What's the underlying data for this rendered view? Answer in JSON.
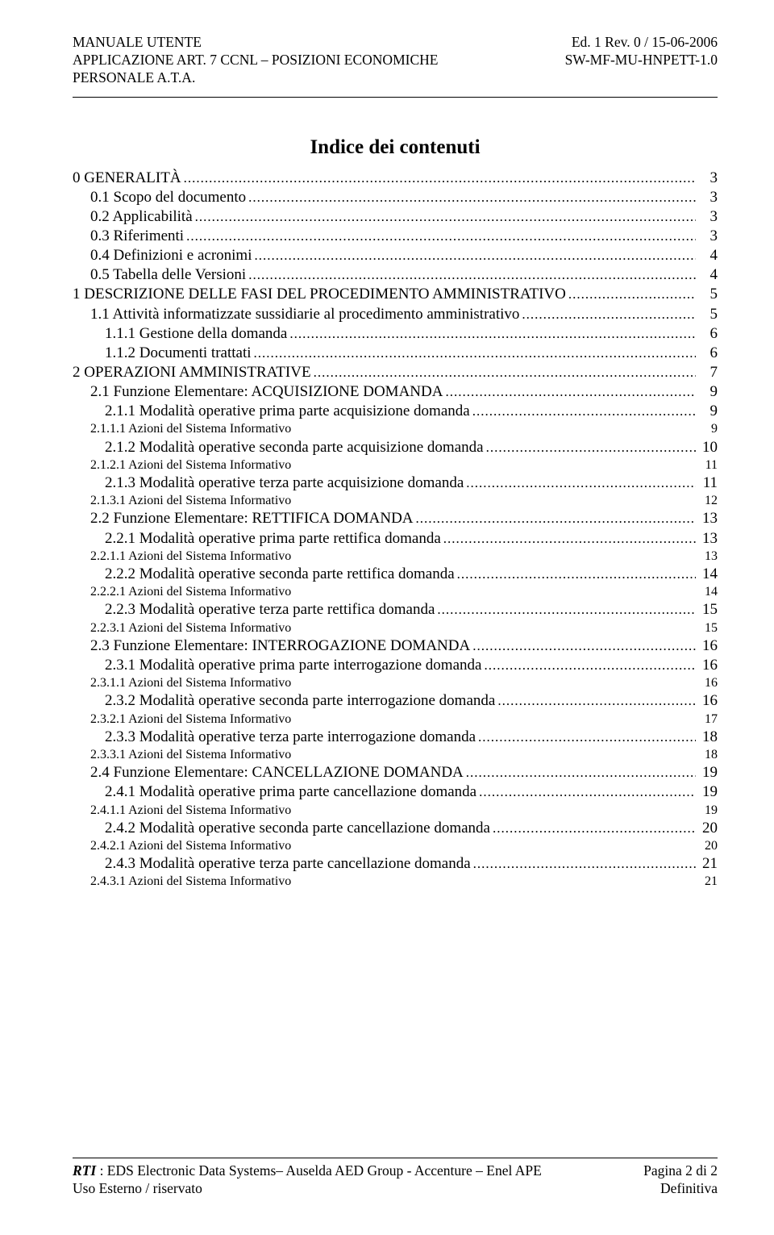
{
  "header": {
    "left": [
      "MANUALE UTENTE",
      "APPLICAZIONE ART. 7 CCNL – POSIZIONI ECONOMICHE",
      "PERSONALE A.T.A."
    ],
    "right": [
      "Ed. 1 Rev. 0 / 15-06-2006",
      "SW-MF-MU-HNPETT-1.0"
    ]
  },
  "toc_title": "Indice dei contenuti",
  "toc": [
    {
      "label": "0 GENERALITÀ",
      "page": "3",
      "level": 0
    },
    {
      "label": "0.1 Scopo del documento",
      "page": "3",
      "level": 1
    },
    {
      "label": "0.2 Applicabilità",
      "page": "3",
      "level": 1
    },
    {
      "label": "0.3 Riferimenti",
      "page": "3",
      "level": 1
    },
    {
      "label": "0.4 Definizioni e acronimi",
      "page": "4",
      "level": 1
    },
    {
      "label": "0.5 Tabella delle Versioni",
      "page": "4",
      "level": 1
    },
    {
      "label": "1 DESCRIZIONE DELLE FASI DEL PROCEDIMENTO AMMINISTRATIVO",
      "page": "5",
      "level": 0
    },
    {
      "label": "1.1 Attività informatizzate sussidiarie al procedimento amministrativo",
      "page": "5",
      "level": 1
    },
    {
      "label": "1.1.1 Gestione della domanda",
      "page": "6",
      "level": 2
    },
    {
      "label": "1.1.2 Documenti trattati",
      "page": "6",
      "level": 2
    },
    {
      "label": "2 OPERAZIONI AMMINISTRATIVE",
      "page": "7",
      "level": 0
    },
    {
      "label": "2.1 Funzione Elementare:  ACQUISIZIONE DOMANDA",
      "page": "9",
      "level": 1
    },
    {
      "label": "2.1.1 Modalità operative prima parte acquisizione domanda",
      "page": "9",
      "level": 2
    },
    {
      "label": "2.1.1.1   Azioni del Sistema Informativo",
      "page": "9",
      "level": 3
    },
    {
      "label": "2.1.2 Modalità operative seconda parte acquisizione domanda",
      "page": "10",
      "level": 2
    },
    {
      "label": "2.1.2.1   Azioni del Sistema Informativo",
      "page": "11",
      "level": 3
    },
    {
      "label": "2.1.3 Modalità operative terza parte acquisizione domanda",
      "page": "11",
      "level": 2
    },
    {
      "label": "2.1.3.1   Azioni del Sistema Informativo",
      "page": "12",
      "level": 3
    },
    {
      "label": "2.2 Funzione Elementare:  RETTIFICA DOMANDA",
      "page": "13",
      "level": 1
    },
    {
      "label": "2.2.1 Modalità operative prima parte rettifica domanda",
      "page": "13",
      "level": 2
    },
    {
      "label": "2.2.1.1   Azioni del Sistema Informativo",
      "page": "13",
      "level": 3
    },
    {
      "label": "2.2.2 Modalità operative seconda parte rettifica domanda",
      "page": "14",
      "level": 2
    },
    {
      "label": "2.2.2.1   Azioni del Sistema Informativo",
      "page": "14",
      "level": 3
    },
    {
      "label": "2.2.3 Modalità operative terza parte rettifica domanda",
      "page": "15",
      "level": 2
    },
    {
      "label": "2.2.3.1   Azioni del Sistema Informativo",
      "page": "15",
      "level": 3
    },
    {
      "label": "2.3 Funzione Elementare:  INTERROGAZIONE DOMANDA",
      "page": "16",
      "level": 1
    },
    {
      "label": "2.3.1 Modalità operative prima parte interrogazione domanda",
      "page": "16",
      "level": 2
    },
    {
      "label": "2.3.1.1   Azioni del Sistema Informativo",
      "page": "16",
      "level": 3
    },
    {
      "label": "2.3.2 Modalità operative seconda parte interrogazione domanda",
      "page": "16",
      "level": 2
    },
    {
      "label": "2.3.2.1   Azioni del Sistema Informativo",
      "page": "17",
      "level": 3
    },
    {
      "label": "2.3.3 Modalità operative terza parte interrogazione domanda",
      "page": "18",
      "level": 2
    },
    {
      "label": "2.3.3.1   Azioni del Sistema Informativo",
      "page": "18",
      "level": 3
    },
    {
      "label": "2.4 Funzione Elementare:  CANCELLAZIONE DOMANDA",
      "page": "19",
      "level": 1
    },
    {
      "label": "2.4.1 Modalità operative prima parte cancellazione domanda",
      "page": "19",
      "level": 2
    },
    {
      "label": "2.4.1.1   Azioni del Sistema Informativo",
      "page": "19",
      "level": 3
    },
    {
      "label": "2.4.2 Modalità operative seconda parte cancellazione domanda",
      "page": "20",
      "level": 2
    },
    {
      "label": "2.4.2.1   Azioni del Sistema Informativo",
      "page": "20",
      "level": 3
    },
    {
      "label": "2.4.3 Modalità operative terza parte cancellazione domanda",
      "page": "21",
      "level": 2
    },
    {
      "label": "2.4.3.1   Azioni del Sistema Informativo",
      "page": "21",
      "level": 3
    }
  ],
  "footer": {
    "line1_prefix": "RTI",
    "line1_rest": " : EDS Electronic Data Systems– Auselda AED Group - Accenture – Enel APE",
    "line2_left": "Uso Esterno  /  riservato",
    "page_label": "Pagina 2 di 2",
    "status": "Definitiva"
  }
}
